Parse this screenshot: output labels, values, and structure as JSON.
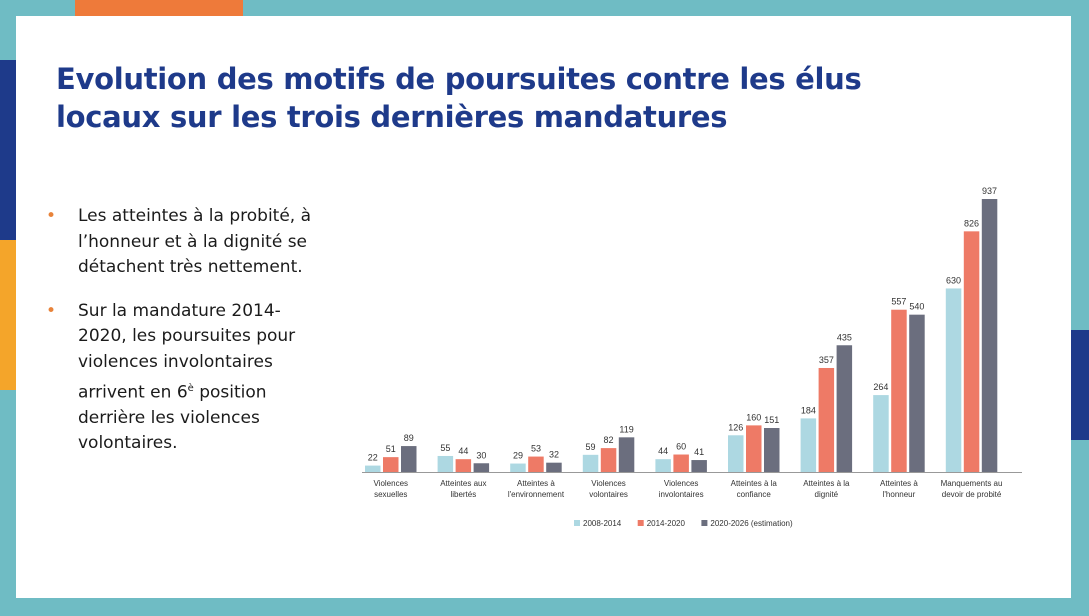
{
  "colors": {
    "frame": "#6fbcc4",
    "title": "#1e3a8a",
    "bullet": "#e8833a"
  },
  "title_line1": "Evolution des  motifs de poursuites contre  les élus",
  "title_line2": "locaux sur les trois dernières mandatures",
  "bullets": [
    "Les atteintes à la probité, à l’honneur et à la dignité se détachent très nettement.",
    "Sur la mandature 2014-2020, les poursuites pour violences involontaires arrivent en 6",
    "position derrière les violences volontaires."
  ],
  "bullet_superscript": "è",
  "chart_data": {
    "type": "bar",
    "categories": [
      [
        "Violences",
        "sexuelles"
      ],
      [
        "Atteintes aux",
        "libertés"
      ],
      [
        "Atteintes à",
        "l'environnement"
      ],
      [
        "Violences",
        "volontaires"
      ],
      [
        "Violences",
        "involontaires"
      ],
      [
        "Atteintes à la",
        "confiance"
      ],
      [
        "Atteintes à la",
        "dignité"
      ],
      [
        "Atteintes à",
        "l'honneur"
      ],
      [
        "Manquements au",
        "devoir de probité"
      ]
    ],
    "series": [
      {
        "name": "2008-2014",
        "color": "#add8e2",
        "values": [
          22,
          55,
          29,
          59,
          44,
          126,
          184,
          264,
          630
        ]
      },
      {
        "name": "2014-2020",
        "color": "#ee7a66",
        "values": [
          51,
          44,
          53,
          82,
          60,
          160,
          357,
          557,
          826
        ]
      },
      {
        "name": "2020-2026 (estimation)",
        "color": "#6b6e7e",
        "values": [
          89,
          30,
          32,
          119,
          41,
          151,
          435,
          540,
          937
        ]
      }
    ],
    "ylim": [
      0,
      937
    ]
  }
}
